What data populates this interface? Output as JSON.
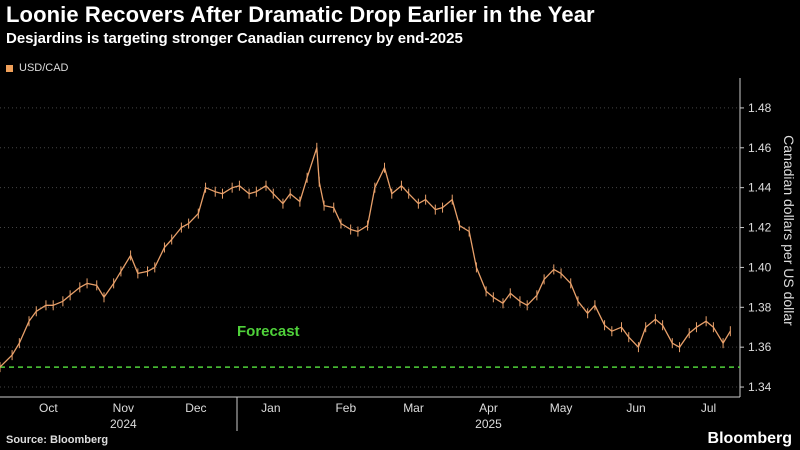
{
  "title": "Loonie Recovers After Dramatic Drop Earlier in the Year",
  "subtitle": "Desjardins is targeting stronger Canadian currency by end-2025",
  "source": "Source: Bloomberg",
  "brand": "Bloomberg",
  "colors": {
    "series": "#e8a06a",
    "forecast": "#4fd13a",
    "grid": "#444444",
    "axis": "#cccccc"
  },
  "chart_data": {
    "type": "line",
    "series": [
      {
        "name": "USD/CAD"
      }
    ],
    "ylabel": "Canadian dollars per US dollar",
    "ylim": [
      1.335,
      1.49
    ],
    "yticks": [
      "1.34",
      "1.36",
      "1.38",
      "1.40",
      "1.42",
      "1.44",
      "1.46",
      "1.48"
    ],
    "xlim": [
      "2024-09-25",
      "2025-07-28"
    ],
    "month_labels": [
      {
        "label": "Oct",
        "date": "2024-10-15"
      },
      {
        "label": "Nov",
        "date": "2024-11-15"
      },
      {
        "label": "Dec",
        "date": "2024-12-15"
      },
      {
        "label": "Jan",
        "date": "2025-01-15"
      },
      {
        "label": "Feb",
        "date": "2025-02-15"
      },
      {
        "label": "Mar",
        "date": "2025-03-15"
      },
      {
        "label": "Apr",
        "date": "2025-04-15"
      },
      {
        "label": "May",
        "date": "2025-05-15"
      },
      {
        "label": "Jun",
        "date": "2025-06-15"
      },
      {
        "label": "Jul",
        "date": "2025-07-15"
      }
    ],
    "year_labels": [
      {
        "label": "2024",
        "date": "2024-11-15"
      },
      {
        "label": "2025",
        "date": "2025-04-15"
      }
    ],
    "year_divider": "2025-01-01",
    "points": [
      [
        "2024-09-25",
        1.35
      ],
      [
        "2024-09-30",
        1.356
      ],
      [
        "2024-10-03",
        1.362
      ],
      [
        "2024-10-07",
        1.373
      ],
      [
        "2024-10-10",
        1.378
      ],
      [
        "2024-10-14",
        1.381
      ],
      [
        "2024-10-17",
        1.381
      ],
      [
        "2024-10-21",
        1.383
      ],
      [
        "2024-10-24",
        1.386
      ],
      [
        "2024-10-28",
        1.39
      ],
      [
        "2024-10-31",
        1.392
      ],
      [
        "2024-11-04",
        1.391
      ],
      [
        "2024-11-07",
        1.385
      ],
      [
        "2024-11-11",
        1.392
      ],
      [
        "2024-11-14",
        1.398
      ],
      [
        "2024-11-18",
        1.406
      ],
      [
        "2024-11-21",
        1.397
      ],
      [
        "2024-11-25",
        1.398
      ],
      [
        "2024-11-28",
        1.4
      ],
      [
        "2024-12-02",
        1.41
      ],
      [
        "2024-12-05",
        1.414
      ],
      [
        "2024-12-09",
        1.42
      ],
      [
        "2024-12-12",
        1.422
      ],
      [
        "2024-12-16",
        1.427
      ],
      [
        "2024-12-19",
        1.44
      ],
      [
        "2024-12-23",
        1.438
      ],
      [
        "2024-12-26",
        1.437
      ],
      [
        "2024-12-30",
        1.44
      ],
      [
        "2025-01-02",
        1.441
      ],
      [
        "2025-01-06",
        1.437
      ],
      [
        "2025-01-09",
        1.438
      ],
      [
        "2025-01-13",
        1.441
      ],
      [
        "2025-01-16",
        1.437
      ],
      [
        "2025-01-20",
        1.432
      ],
      [
        "2025-01-23",
        1.437
      ],
      [
        "2025-01-27",
        1.433
      ],
      [
        "2025-01-30",
        1.445
      ],
      [
        "2025-02-03",
        1.46
      ],
      [
        "2025-02-04",
        1.443
      ],
      [
        "2025-02-06",
        1.431
      ],
      [
        "2025-02-10",
        1.43
      ],
      [
        "2025-02-13",
        1.422
      ],
      [
        "2025-02-17",
        1.419
      ],
      [
        "2025-02-20",
        1.418
      ],
      [
        "2025-02-24",
        1.421
      ],
      [
        "2025-02-27",
        1.44
      ],
      [
        "2025-03-03",
        1.45
      ],
      [
        "2025-03-06",
        1.437
      ],
      [
        "2025-03-10",
        1.441
      ],
      [
        "2025-03-13",
        1.437
      ],
      [
        "2025-03-17",
        1.432
      ],
      [
        "2025-03-20",
        1.434
      ],
      [
        "2025-03-24",
        1.429
      ],
      [
        "2025-03-27",
        1.43
      ],
      [
        "2025-03-31",
        1.434
      ],
      [
        "2025-04-03",
        1.421
      ],
      [
        "2025-04-07",
        1.418
      ],
      [
        "2025-04-10",
        1.4
      ],
      [
        "2025-04-14",
        1.388
      ],
      [
        "2025-04-17",
        1.385
      ],
      [
        "2025-04-21",
        1.382
      ],
      [
        "2025-04-24",
        1.387
      ],
      [
        "2025-04-28",
        1.383
      ],
      [
        "2025-05-01",
        1.381
      ],
      [
        "2025-05-05",
        1.386
      ],
      [
        "2025-05-08",
        1.394
      ],
      [
        "2025-05-12",
        1.399
      ],
      [
        "2025-05-15",
        1.397
      ],
      [
        "2025-05-19",
        1.392
      ],
      [
        "2025-05-22",
        1.383
      ],
      [
        "2025-05-26",
        1.377
      ],
      [
        "2025-05-29",
        1.381
      ],
      [
        "2025-06-02",
        1.371
      ],
      [
        "2025-06-05",
        1.368
      ],
      [
        "2025-06-09",
        1.37
      ],
      [
        "2025-06-12",
        1.365
      ],
      [
        "2025-06-16",
        1.36
      ],
      [
        "2025-06-19",
        1.37
      ],
      [
        "2025-06-23",
        1.374
      ],
      [
        "2025-06-26",
        1.371
      ],
      [
        "2025-06-30",
        1.362
      ],
      [
        "2025-07-03",
        1.36
      ],
      [
        "2025-07-07",
        1.367
      ],
      [
        "2025-07-10",
        1.37
      ],
      [
        "2025-07-14",
        1.373
      ],
      [
        "2025-07-17",
        1.37
      ],
      [
        "2025-07-21",
        1.362
      ],
      [
        "2025-07-24",
        1.368
      ]
    ],
    "forecast": {
      "label": "Forecast",
      "value": 1.35
    }
  }
}
